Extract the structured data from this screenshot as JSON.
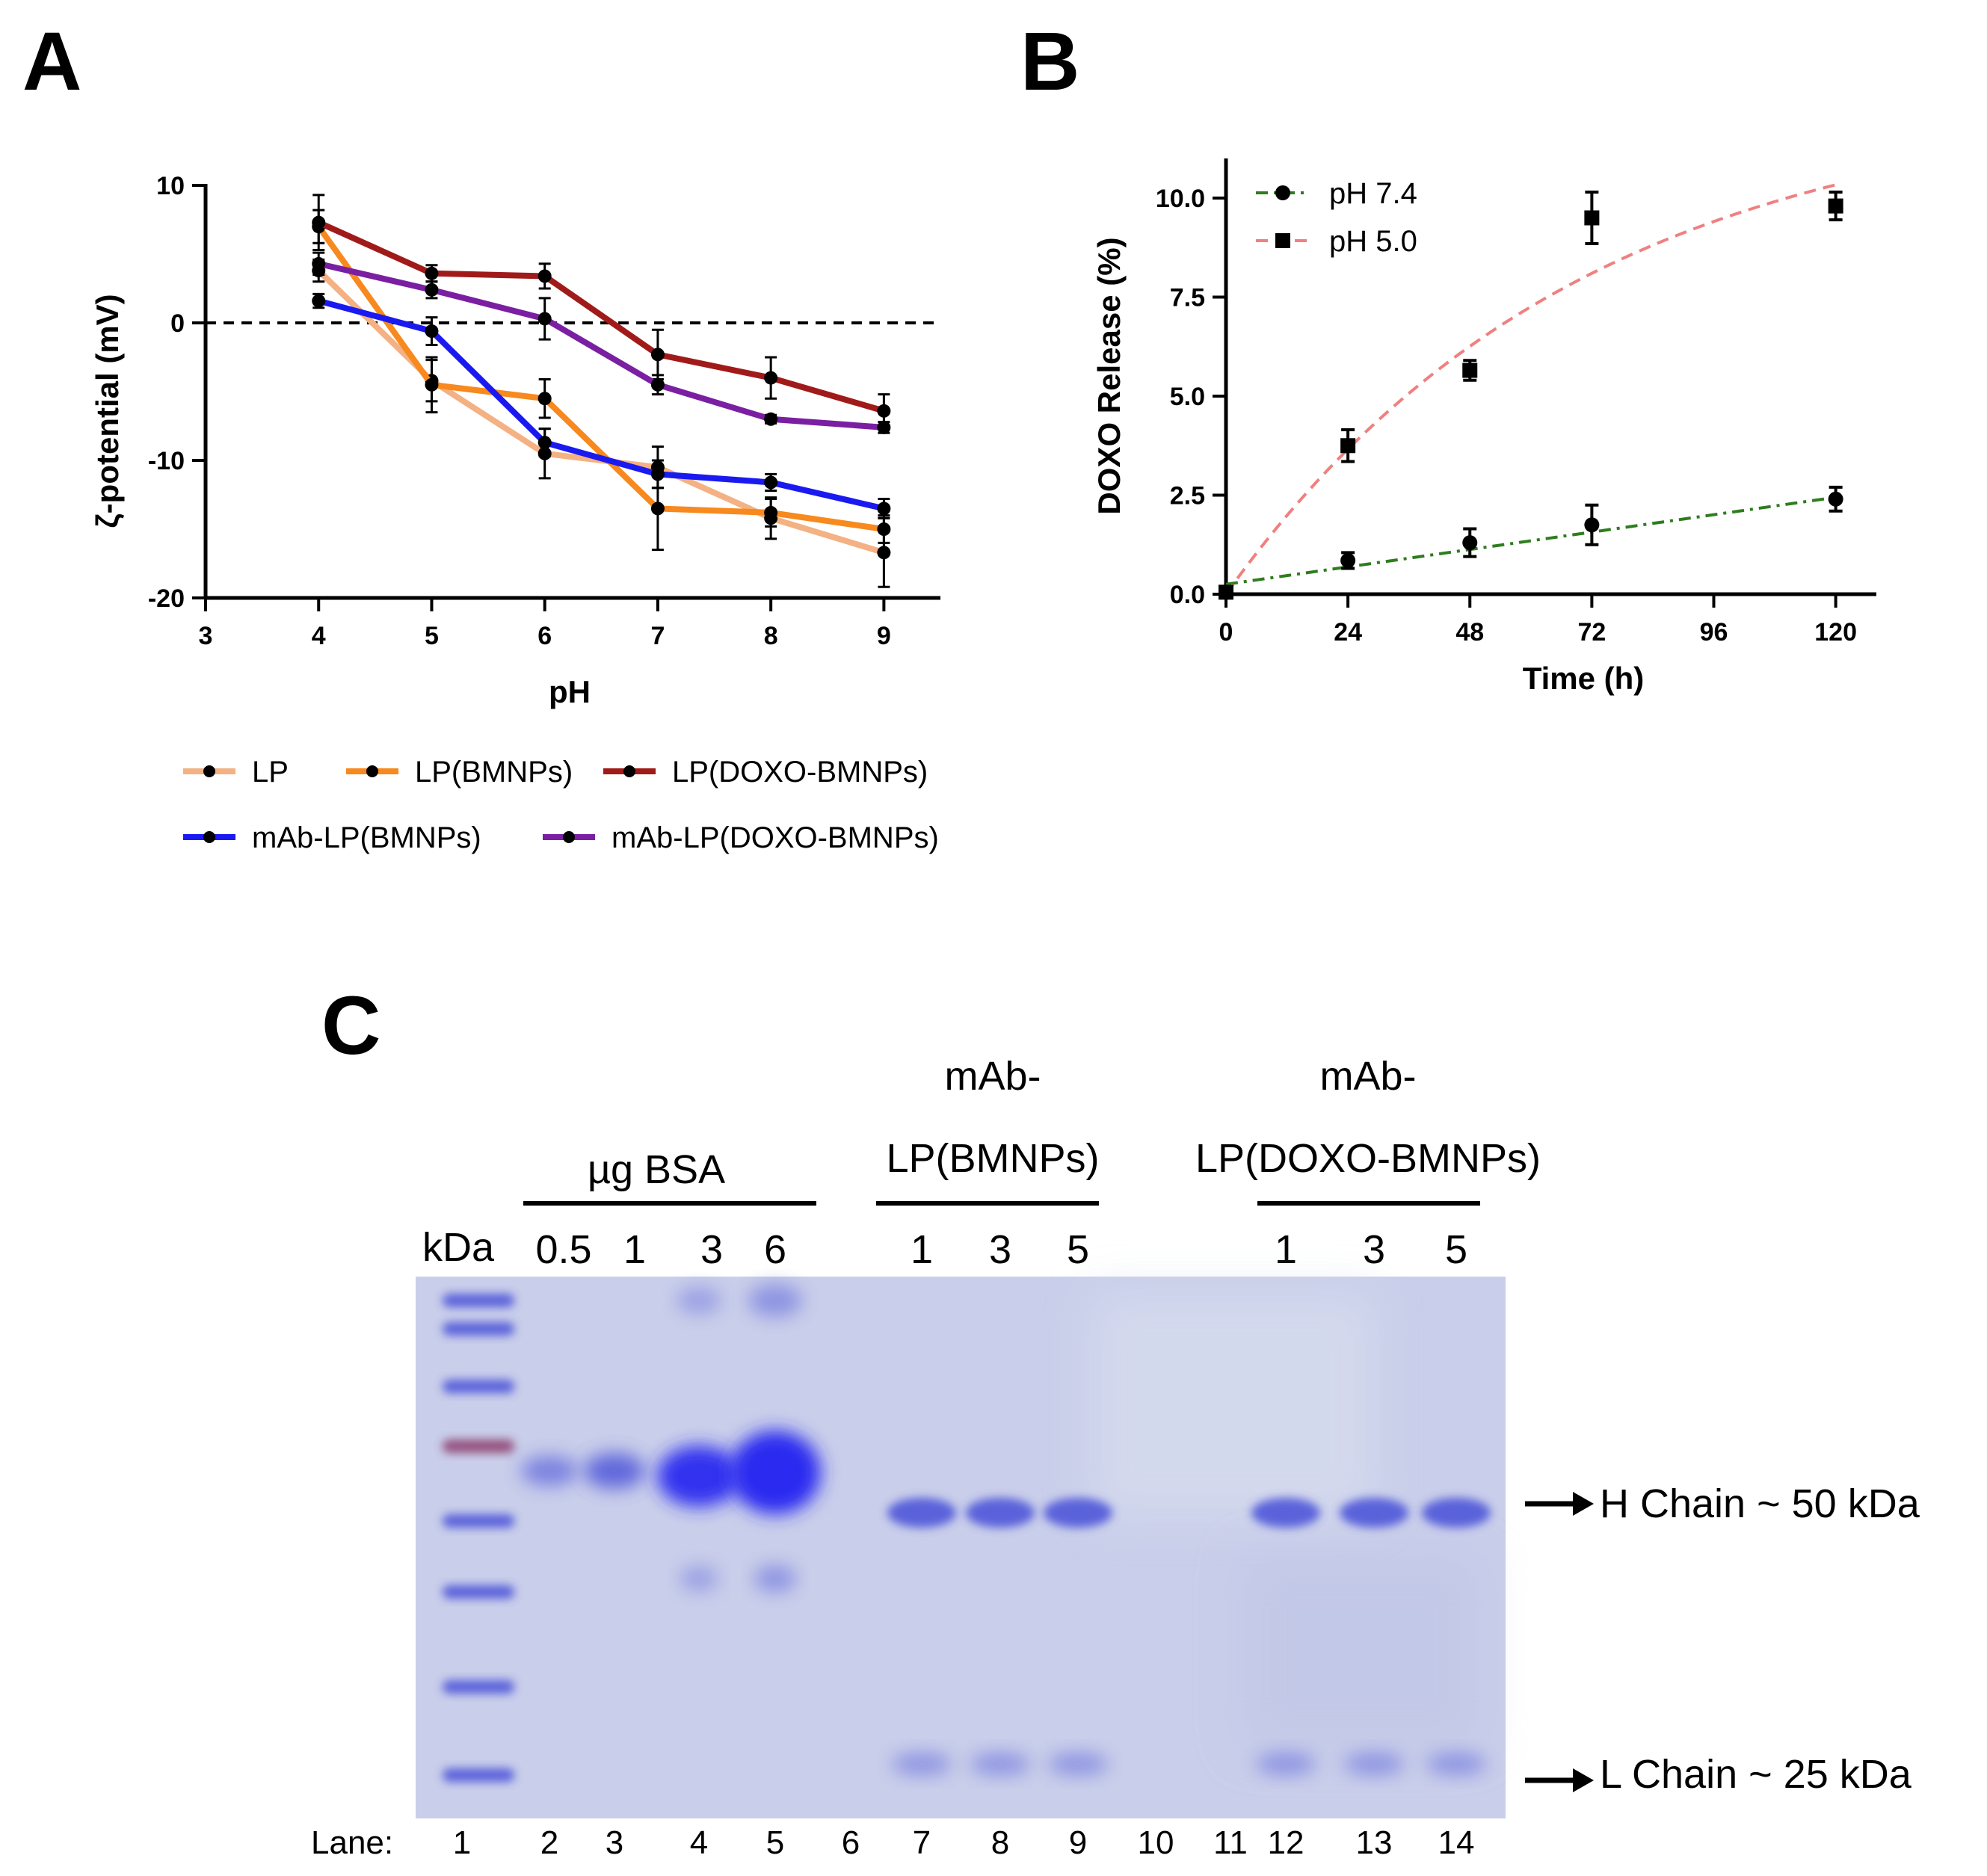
{
  "panels": {
    "a": "A",
    "b": "B",
    "c": "C"
  },
  "chart_data": [
    {
      "type": "line",
      "panel": "A",
      "xlabel": "pH",
      "ylabel": "ζ-potential (mV)",
      "xlim": [
        3,
        9.5
      ],
      "ylim": [
        -20,
        10
      ],
      "xticks": [
        3,
        4,
        5,
        6,
        7,
        8,
        9
      ],
      "yticks": [
        -20,
        -10,
        0,
        10
      ],
      "reference_line": 0,
      "x": [
        4,
        5,
        6,
        7,
        8,
        9
      ],
      "legend_placement": "bottom",
      "series": [
        {
          "name": "LP",
          "color": "#F4B183",
          "values": [
            3.8,
            -4.2,
            -9.5,
            -10.5,
            -14.2,
            -16.7
          ],
          "errors": [
            0.8,
            1.5,
            1.8,
            1.5,
            1.5,
            2.5
          ]
        },
        {
          "name": "LP(BMNPs)",
          "color": "#F7891E",
          "values": [
            7.0,
            -4.5,
            -5.5,
            -13.5,
            -13.8,
            -15.0
          ],
          "errors": [
            1.2,
            2.0,
            1.4,
            3.0,
            1.0,
            1.0
          ]
        },
        {
          "name": "LP(DOXO-BMNPs)",
          "color": "#A11A1A",
          "values": [
            7.3,
            3.6,
            3.4,
            -2.3,
            -4.0,
            -6.4
          ],
          "errors": [
            2.0,
            0.6,
            0.9,
            1.8,
            1.5,
            1.2
          ]
        },
        {
          "name": "mAb-LP(BMNPs)",
          "color": "#1A1AF0",
          "values": [
            1.6,
            -0.6,
            -8.7,
            -11.0,
            -11.6,
            -13.5
          ],
          "errors": [
            0.5,
            1.0,
            1.0,
            1.0,
            0.6,
            0.7
          ]
        },
        {
          "name": "mAb-LP(DOXO-BMNPs)",
          "color": "#7B1FA2",
          "values": [
            4.3,
            2.4,
            0.3,
            -4.5,
            -7.0,
            -7.6
          ],
          "errors": [
            0.8,
            0.6,
            1.5,
            0.7,
            0.3,
            0.4
          ]
        }
      ]
    },
    {
      "type": "scatter",
      "panel": "B",
      "xlabel": "Time (h)",
      "ylabel": "DOXO Release (%)",
      "xlim": [
        0,
        128
      ],
      "ylim": [
        0,
        11
      ],
      "xticks": [
        0,
        24,
        48,
        72,
        96,
        120
      ],
      "yticks": [
        "0.0",
        "2.5",
        "5.0",
        "7.5",
        "10.0"
      ],
      "legend_placement": "top-left",
      "series": [
        {
          "name": "pH 7.4",
          "marker": "circle",
          "line_color": "#2E7D1E",
          "line_style": "dash-dot",
          "x": [
            0,
            24,
            48,
            72,
            120
          ],
          "values": [
            0.05,
            0.85,
            1.3,
            1.75,
            2.4
          ],
          "errors": [
            0.05,
            0.2,
            0.35,
            0.5,
            0.3
          ],
          "fit": {
            "kind": "linear",
            "intercept": 0.25,
            "slope": 0.0183
          }
        },
        {
          "name": "pH 5.0",
          "marker": "square",
          "line_color": "#F08080",
          "line_style": "dashed",
          "x": [
            0,
            24,
            48,
            72,
            120
          ],
          "values": [
            0.05,
            3.75,
            5.65,
            9.5,
            9.8
          ],
          "errors": [
            0.05,
            0.4,
            0.25,
            0.65,
            0.35
          ],
          "fit": {
            "kind": "one-phase",
            "plateau": 12.6,
            "k": 0.0143
          }
        }
      ]
    }
  ],
  "gel": {
    "header_mab": "mAb-",
    "header_lp_bmnps": "LP(BMNPs)",
    "header_lp_doxo": "LP(DOXO-BMNPs)",
    "bsa_label": "µg BSA",
    "kda_label": "kDa",
    "bsa_amounts": [
      "0.5",
      "1",
      "3",
      "6"
    ],
    "sample_amounts_1": [
      "1",
      "3",
      "5"
    ],
    "sample_amounts_2": [
      "1",
      "3",
      "5"
    ],
    "h_chain_label": "H Chain ~ 50 kDa",
    "l_chain_label": "L Chain ~ 25 kDa",
    "lane_prefix": "Lane:",
    "lanes": [
      "1",
      "2",
      "3",
      "4",
      "5",
      "6",
      "7",
      "8",
      "9",
      "10",
      "11",
      "12",
      "13",
      "14"
    ],
    "colors": {
      "background": "#C9CEEA",
      "band": "#4650D8",
      "strong_band": "#2A2CF0",
      "marker_red": "#8A3A6A"
    }
  }
}
